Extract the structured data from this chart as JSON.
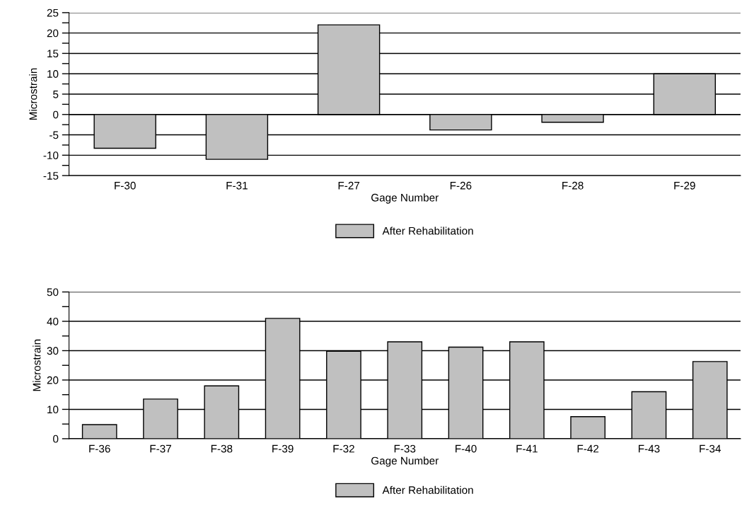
{
  "chart_data": [
    {
      "type": "bar",
      "xlabel": "Gage Number",
      "ylabel": "Microstrain",
      "categories": [
        "F-30",
        "F-31",
        "F-27",
        "F-26",
        "F-28",
        "F-29"
      ],
      "series": [
        {
          "name": "After Rehabilitation",
          "color": "#c0c0c0",
          "values": [
            -8.3,
            -11,
            22,
            -3.8,
            -1.9,
            10
          ]
        }
      ],
      "ylim": [
        -15,
        25
      ],
      "yticks": [
        -15,
        {
          "value": -12.5,
          "label": null
        },
        -10,
        {
          "value": -7.5,
          "label": null
        },
        -5,
        {
          "value": -2.5,
          "label": null
        },
        0,
        {
          "value": 2.5,
          "label": null
        },
        5,
        {
          "value": 7.5,
          "label": null
        },
        10,
        {
          "value": 12.5,
          "label": null
        },
        15,
        {
          "value": 17.5,
          "label": null
        },
        20,
        {
          "value": 22.5,
          "label": null
        },
        25
      ],
      "grid": "y",
      "legend": "bottom"
    },
    {
      "type": "bar",
      "xlabel": "Gage Number",
      "ylabel": "Microstrain",
      "categories": [
        "F-36",
        "F-37",
        "F-38",
        "F-39",
        "F-32",
        "F-33",
        "F-40",
        "F-41",
        "F-42",
        "F-43",
        "F-34"
      ],
      "series": [
        {
          "name": "After Rehabilitation",
          "color": "#c0c0c0",
          "values": [
            4.8,
            13.5,
            18,
            41,
            29.8,
            33,
            31.2,
            33,
            7.5,
            16,
            26.3
          ]
        }
      ],
      "ylim": [
        0,
        50
      ],
      "yticks": [
        0,
        {
          "value": 5,
          "label": null
        },
        10,
        {
          "value": 15,
          "label": null
        },
        20,
        {
          "value": 25,
          "label": null
        },
        30,
        {
          "value": 35,
          "label": null
        },
        40,
        {
          "value": 45,
          "label": null
        },
        50
      ],
      "grid": "y",
      "legend": "bottom"
    }
  ]
}
